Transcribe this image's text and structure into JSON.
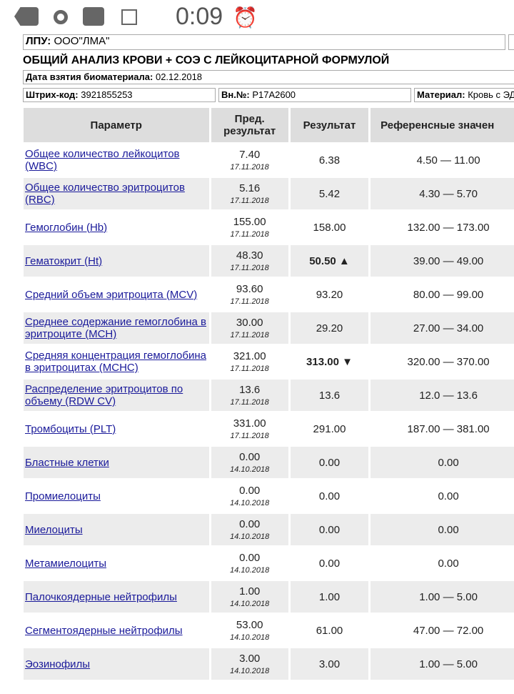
{
  "status_bar": {
    "time": "0:09",
    "icons": [
      "chat-bubble-icon",
      "circle-icon",
      "smiley-message-icon",
      "image-icon",
      "alarm-icon"
    ]
  },
  "header": {
    "lpu_label": "ЛПУ:",
    "lpu_value": "ООО\"ЛМА\"",
    "title": "ОБЩИЙ АНАЛИЗ КРОВИ + СОЭ С ЛЕЙКОЦИТАРНОЙ ФОРМУЛОЙ",
    "date_label": "Дата взятия биоматериала:",
    "date_value": "02.12.2018",
    "barcode_label": "Штрих-код:",
    "barcode_value": "3921855253",
    "inner_label": "Вн.№:",
    "inner_value": "P17A2600",
    "material_label": "Материал:",
    "material_value": "Кровь с ЭД"
  },
  "table": {
    "headers": [
      "Параметр",
      "Пред. результат",
      "Результат",
      "Референсные значен"
    ],
    "rows": [
      {
        "param": "Общее количество лейкоцитов (WBC)",
        "prev": "7.40",
        "prev_date": "17.11.2018",
        "result": "6.38",
        "ref": "4.50 — 11.00"
      },
      {
        "param": "Общее количество эритроцитов (RBC)",
        "prev": "5.16",
        "prev_date": "17.11.2018",
        "result": "5.42",
        "ref": "4.30 — 5.70"
      },
      {
        "param": "Гемоглобин (Hb)",
        "prev": "155.00",
        "prev_date": "17.11.2018",
        "result": "158.00",
        "ref": "132.00 — 173.00"
      },
      {
        "param": "Гематокрит (Ht)",
        "prev": "48.30",
        "prev_date": "17.11.2018",
        "result": "50.50 ▲",
        "ref": "39.00 — 49.00",
        "flag": "high"
      },
      {
        "param": "Средний объем эритроцита (MCV)",
        "prev": "93.60",
        "prev_date": "17.11.2018",
        "result": "93.20",
        "ref": "80.00 — 99.00"
      },
      {
        "param": "Среднее содержание гемоглобина в эритроците (MCH)",
        "prev": "30.00",
        "prev_date": "17.11.2018",
        "result": "29.20",
        "ref": "27.00 — 34.00"
      },
      {
        "param": "Средняя концентрация гемоглобина в эритроцитах (MCHC)",
        "prev": "321.00",
        "prev_date": "17.11.2018",
        "result": "313.00 ▼",
        "ref": "320.00 — 370.00",
        "flag": "low"
      },
      {
        "param": "Распределение эритроцитов по объему (RDW CV)",
        "prev": "13.6",
        "prev_date": "17.11.2018",
        "result": "13.6",
        "ref": "12.0 — 13.6"
      },
      {
        "param": "Тромбоциты (PLT)",
        "prev": "331.00",
        "prev_date": "17.11.2018",
        "result": "291.00",
        "ref": "187.00 — 381.00"
      },
      {
        "param": "Бластные клетки",
        "prev": "0.00",
        "prev_date": "14.10.2018",
        "result": "0.00",
        "ref": "0.00"
      },
      {
        "param": "Промиелоциты",
        "prev": "0.00",
        "prev_date": "14.10.2018",
        "result": "0.00",
        "ref": "0.00"
      },
      {
        "param": "Миелоциты",
        "prev": "0.00",
        "prev_date": "14.10.2018",
        "result": "0.00",
        "ref": "0.00"
      },
      {
        "param": "Метамиелоциты",
        "prev": "0.00",
        "prev_date": "14.10.2018",
        "result": "0.00",
        "ref": "0.00"
      },
      {
        "param": "Палочкоядерные нейтрофилы",
        "prev": "1.00",
        "prev_date": "14.10.2018",
        "result": "1.00",
        "ref": "1.00 — 5.00"
      },
      {
        "param": "Сегментоядерные нейтрофилы",
        "prev": "53.00",
        "prev_date": "14.10.2018",
        "result": "61.00",
        "ref": "47.00 — 72.00"
      },
      {
        "param": "Эозинофилы",
        "prev": "3.00",
        "prev_date": "14.10.2018",
        "result": "3.00",
        "ref": "1.00 — 5.00"
      }
    ]
  }
}
